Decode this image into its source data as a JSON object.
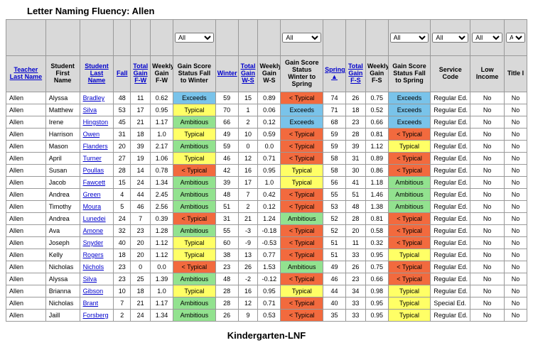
{
  "title": "Letter Naming Fluency:  Allen",
  "footer": "Kindergarten-LNF",
  "filters": {
    "gsfw": "All",
    "gsws": "All",
    "gsfs": "All",
    "svc": "All",
    "low": "All",
    "t1": "All"
  },
  "headers": {
    "tln": "Teacher Last Name",
    "sfn": "Student First Name",
    "sln": "Student Last Name",
    "fall": "Fall",
    "tgfw": "Total Gain F-W",
    "wgfw": "Weekly Gain F-W",
    "gsfw": "Gain Score Status Fall to Winter",
    "win": "Winter",
    "tgws": "Total Gain W-S",
    "wgws": "Weekly Gain W-S",
    "gsws": "Gain Score Status Winter to Spring",
    "spr": "Spring ▲",
    "tgfs": "Total Gain F-S",
    "wgfs": "Weekly Gain F-S",
    "gsfs": "Gain Score Status Fall to Spring",
    "svc": "Service Code",
    "low": "Low Income",
    "t1": "Title I"
  },
  "status_colors": {
    "Exceeds": "s-exceeds",
    "Typical": "s-typical",
    "Ambitious": "s-ambitious",
    "< Typical": "s-below"
  },
  "rows": [
    {
      "tln": "Allen",
      "sfn": "Alyssa",
      "sln": "Bradley",
      "fall": 48,
      "tgfw": 11,
      "wgfw": "0.62",
      "gsfw": "Exceeds",
      "win": 59,
      "tgws": 15,
      "wgws": "0.89",
      "gsws": "< Typical",
      "spr": 74,
      "tgfs": 26,
      "wgfs": "0.75",
      "gsfs": "Exceeds",
      "svc": "Regular Ed.",
      "low": "No",
      "t1": "No"
    },
    {
      "tln": "Allen",
      "sfn": "Matthew",
      "sln": "Silva",
      "fall": 53,
      "tgfw": 17,
      "wgfw": "0.95",
      "gsfw": "Typical",
      "win": 70,
      "tgws": 1,
      "wgws": "0.06",
      "gsws": "Exceeds",
      "spr": 71,
      "tgfs": 18,
      "wgfs": "0.52",
      "gsfs": "Exceeds",
      "svc": "Regular Ed.",
      "low": "No",
      "t1": "No"
    },
    {
      "tln": "Allen",
      "sfn": "Irene",
      "sln": "Hingston",
      "fall": 45,
      "tgfw": 21,
      "wgfw": "1.17",
      "gsfw": "Ambitious",
      "win": 66,
      "tgws": 2,
      "wgws": "0.12",
      "gsws": "Exceeds",
      "spr": 68,
      "tgfs": 23,
      "wgfs": "0.66",
      "gsfs": "Exceeds",
      "svc": "Regular Ed.",
      "low": "No",
      "t1": "No"
    },
    {
      "tln": "Allen",
      "sfn": "Harrison",
      "sln": "Owen",
      "fall": 31,
      "tgfw": 18,
      "wgfw": "1.0",
      "gsfw": "Typical",
      "win": 49,
      "tgws": 10,
      "wgws": "0.59",
      "gsws": "< Typical",
      "spr": 59,
      "tgfs": 28,
      "wgfs": "0.81",
      "gsfs": "< Typical",
      "svc": "Regular Ed.",
      "low": "No",
      "t1": "No"
    },
    {
      "tln": "Allen",
      "sfn": "Mason",
      "sln": "Flanders",
      "fall": 20,
      "tgfw": 39,
      "wgfw": "2.17",
      "gsfw": "Ambitious",
      "win": 59,
      "tgws": 0,
      "wgws": "0.0",
      "gsws": "< Typical",
      "spr": 59,
      "tgfs": 39,
      "wgfs": "1.12",
      "gsfs": "Typical",
      "svc": "Regular Ed.",
      "low": "No",
      "t1": "No"
    },
    {
      "tln": "Allen",
      "sfn": "April",
      "sln": "Turner",
      "fall": 27,
      "tgfw": 19,
      "wgfw": "1.06",
      "gsfw": "Typical",
      "win": 46,
      "tgws": 12,
      "wgws": "0.71",
      "gsws": "< Typical",
      "spr": 58,
      "tgfs": 31,
      "wgfs": "0.89",
      "gsfs": "< Typical",
      "svc": "Regular Ed.",
      "low": "No",
      "t1": "No"
    },
    {
      "tln": "Allen",
      "sfn": "Susan",
      "sln": "Poullas",
      "fall": 28,
      "tgfw": 14,
      "wgfw": "0.78",
      "gsfw": "< Typical",
      "win": 42,
      "tgws": 16,
      "wgws": "0.95",
      "gsws": "Typical",
      "spr": 58,
      "tgfs": 30,
      "wgfs": "0.86",
      "gsfs": "< Typical",
      "svc": "Regular Ed.",
      "low": "No",
      "t1": "No"
    },
    {
      "tln": "Allen",
      "sfn": "Jacob",
      "sln": "Fawcett",
      "fall": 15,
      "tgfw": 24,
      "wgfw": "1.34",
      "gsfw": "Ambitious",
      "win": 39,
      "tgws": 17,
      "wgws": "1.0",
      "gsws": "Typical",
      "spr": 56,
      "tgfs": 41,
      "wgfs": "1.18",
      "gsfs": "Ambitious",
      "svc": "Regular Ed.",
      "low": "No",
      "t1": "No"
    },
    {
      "tln": "Allen",
      "sfn": "Andrea",
      "sln": "Green",
      "fall": 4,
      "tgfw": 44,
      "wgfw": "2.45",
      "gsfw": "Ambitious",
      "win": 48,
      "tgws": 7,
      "wgws": "0.42",
      "gsws": "< Typical",
      "spr": 55,
      "tgfs": 51,
      "wgfs": "1.46",
      "gsfs": "Ambitious",
      "svc": "Regular Ed.",
      "low": "No",
      "t1": "No"
    },
    {
      "tln": "Allen",
      "sfn": "Timothy",
      "sln": "Moura",
      "fall": 5,
      "tgfw": 46,
      "wgfw": "2.56",
      "gsfw": "Ambitious",
      "win": 51,
      "tgws": 2,
      "wgws": "0.12",
      "gsws": "< Typical",
      "spr": 53,
      "tgfs": 48,
      "wgfs": "1.38",
      "gsfs": "Ambitious",
      "svc": "Regular Ed.",
      "low": "No",
      "t1": "No"
    },
    {
      "tln": "Allen",
      "sfn": "Andrea",
      "sln": "Lunedei",
      "fall": 24,
      "tgfw": 7,
      "wgfw": "0.39",
      "gsfw": "< Typical",
      "win": 31,
      "tgws": 21,
      "wgws": "1.24",
      "gsws": "Ambitious",
      "spr": 52,
      "tgfs": 28,
      "wgfs": "0.81",
      "gsfs": "< Typical",
      "svc": "Regular Ed.",
      "low": "No",
      "t1": "No"
    },
    {
      "tln": "Allen",
      "sfn": "Ava",
      "sln": "Amone",
      "fall": 32,
      "tgfw": 23,
      "wgfw": "1.28",
      "gsfw": "Ambitious",
      "win": 55,
      "tgws": -3,
      "wgws": "-0.18",
      "gsws": "< Typical",
      "spr": 52,
      "tgfs": 20,
      "wgfs": "0.58",
      "gsfs": "< Typical",
      "svc": "Regular Ed.",
      "low": "No",
      "t1": "No"
    },
    {
      "tln": "Allen",
      "sfn": "Joseph",
      "sln": "Snyder",
      "fall": 40,
      "tgfw": 20,
      "wgfw": "1.12",
      "gsfw": "Typical",
      "win": 60,
      "tgws": -9,
      "wgws": "-0.53",
      "gsws": "< Typical",
      "spr": 51,
      "tgfs": 11,
      "wgfs": "0.32",
      "gsfs": "< Typical",
      "svc": "Regular Ed.",
      "low": "No",
      "t1": "No"
    },
    {
      "tln": "Allen",
      "sfn": "Kelly",
      "sln": "Rogers",
      "fall": 18,
      "tgfw": 20,
      "wgfw": "1.12",
      "gsfw": "Typical",
      "win": 38,
      "tgws": 13,
      "wgws": "0.77",
      "gsws": "< Typical",
      "spr": 51,
      "tgfs": 33,
      "wgfs": "0.95",
      "gsfs": "Typical",
      "svc": "Regular Ed.",
      "low": "No",
      "t1": "No"
    },
    {
      "tln": "Allen",
      "sfn": "Nicholas",
      "sln": "Nichols",
      "fall": 23,
      "tgfw": 0,
      "wgfw": "0.0",
      "gsfw": "< Typical",
      "win": 23,
      "tgws": 26,
      "wgws": "1.53",
      "gsws": "Ambitious",
      "spr": 49,
      "tgfs": 26,
      "wgfs": "0.75",
      "gsfs": "< Typical",
      "svc": "Regular Ed.",
      "low": "No",
      "t1": "No"
    },
    {
      "tln": "Allen",
      "sfn": "Alyssa",
      "sln": "Silva",
      "fall": 23,
      "tgfw": 25,
      "wgfw": "1.39",
      "gsfw": "Ambitious",
      "win": 48,
      "tgws": -2,
      "wgws": "-0.12",
      "gsws": "< Typical",
      "spr": 46,
      "tgfs": 23,
      "wgfs": "0.66",
      "gsfs": "< Typical",
      "svc": "Regular Ed.",
      "low": "No",
      "t1": "No"
    },
    {
      "tln": "Allen",
      "sfn": "Brianna",
      "sln": "Gibson",
      "fall": 10,
      "tgfw": 18,
      "wgfw": "1.0",
      "gsfw": "Typical",
      "win": 28,
      "tgws": 16,
      "wgws": "0.95",
      "gsws": "Typical",
      "spr": 44,
      "tgfs": 34,
      "wgfs": "0.98",
      "gsfs": "Typical",
      "svc": "Regular Ed.",
      "low": "No",
      "t1": "No"
    },
    {
      "tln": "Allen",
      "sfn": "Nicholas",
      "sln": "Brant",
      "fall": 7,
      "tgfw": 21,
      "wgfw": "1.17",
      "gsfw": "Ambitious",
      "win": 28,
      "tgws": 12,
      "wgws": "0.71",
      "gsws": "< Typical",
      "spr": 40,
      "tgfs": 33,
      "wgfs": "0.95",
      "gsfs": "Typical",
      "svc": "Special Ed.",
      "low": "No",
      "t1": "No"
    },
    {
      "tln": "Allen",
      "sfn": "Jaill",
      "sln": "Forsberg",
      "fall": 2,
      "tgfw": 24,
      "wgfw": "1.34",
      "gsfw": "Ambitious",
      "win": 26,
      "tgws": 9,
      "wgws": "0.53",
      "gsws": "< Typical",
      "spr": 35,
      "tgfs": 33,
      "wgfs": "0.95",
      "gsfs": "Typical",
      "svc": "Regular Ed.",
      "low": "No",
      "t1": "No"
    }
  ]
}
